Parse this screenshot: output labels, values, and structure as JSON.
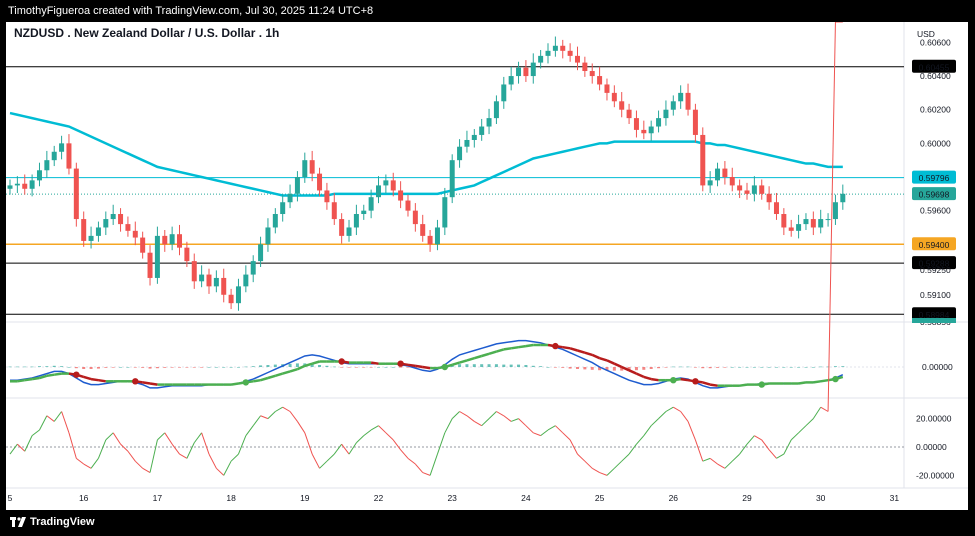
{
  "header": {
    "attribution": "TimothyFigueroa created with TradingView.com, Jul 30, 2025 11:24 UTC+8"
  },
  "footer": {
    "brand": "TradingView",
    "brand_icon": "tradingview-logo-icon"
  },
  "chart_data": {
    "type": "candlestick",
    "title": "NZDUSD . New Zealand Dollar / U.S. Dollar . 1h",
    "currency": "USD",
    "colors": {
      "up": "#26a69a",
      "down": "#ef5350",
      "ma": "#00bcd4",
      "orange_line": "#f5a623",
      "cyan_line": "#00bcd4",
      "black_line": "#000000",
      "green_label": "#26a69a",
      "macd_fast": "#1e5ccf",
      "macd_slow": "#4caf50",
      "macd_slow_down": "#b71c1c",
      "osc_up": "#4caf50",
      "osc_down": "#ef5350"
    },
    "x_axis": {
      "ticks": [
        "5",
        "16",
        "17",
        "18",
        "19",
        "22",
        "23",
        "24",
        "25",
        "26",
        "29",
        "30",
        "31"
      ],
      "tick_bar_index": [
        0,
        10,
        20,
        30,
        40,
        50,
        60,
        70,
        80,
        90,
        100,
        110,
        120
      ]
    },
    "price_axis": {
      "range": [
        0.5895,
        0.6065
      ],
      "ticks": [
        "0.60600",
        "0.60400",
        "0.60200",
        "0.60000",
        "0.59600",
        "0.59100"
      ],
      "tick_values": [
        0.606,
        0.604,
        0.602,
        0.6,
        0.596,
        0.591
      ],
      "partial_ticks": [
        "0.59250",
        "0.58856"
      ]
    },
    "horizontal_lines": [
      {
        "value": 0.60455,
        "label": "0.60455",
        "color": "black_line"
      },
      {
        "value": 0.59796,
        "label": "0.59796",
        "color": "cyan_line"
      },
      {
        "value": 0.59698,
        "label": "0.59698",
        "color": "green_label",
        "dotted": true
      },
      {
        "value": 0.594,
        "label": "0.59400",
        "color": "orange_line"
      },
      {
        "value": 0.59288,
        "label": "0.59288",
        "color": "black_line"
      },
      {
        "value": 0.58984,
        "label": "0.58984",
        "color": "black_line"
      }
    ],
    "close": [
      0.5975,
      0.5976,
      0.5973,
      0.5978,
      0.5984,
      0.599,
      0.5995,
      0.6,
      0.5985,
      0.5955,
      0.5942,
      0.5945,
      0.595,
      0.5955,
      0.5958,
      0.5952,
      0.5948,
      0.5944,
      0.5935,
      0.592,
      0.5945,
      0.594,
      0.5946,
      0.5938,
      0.593,
      0.5918,
      0.5922,
      0.5915,
      0.592,
      0.591,
      0.5905,
      0.5915,
      0.5922,
      0.593,
      0.594,
      0.595,
      0.5958,
      0.5965,
      0.597,
      0.598,
      0.599,
      0.5982,
      0.5972,
      0.5965,
      0.5955,
      0.5945,
      0.595,
      0.5958,
      0.596,
      0.5968,
      0.5975,
      0.5978,
      0.5972,
      0.5966,
      0.596,
      0.5952,
      0.5945,
      0.594,
      0.595,
      0.5968,
      0.599,
      0.5998,
      0.6002,
      0.6005,
      0.601,
      0.6015,
      0.6025,
      0.6035,
      0.604,
      0.6045,
      0.604,
      0.6048,
      0.6052,
      0.6055,
      0.6058,
      0.6055,
      0.6052,
      0.6048,
      0.6043,
      0.604,
      0.6035,
      0.603,
      0.6025,
      0.602,
      0.6015,
      0.6008,
      0.6006,
      0.601,
      0.6015,
      0.602,
      0.6025,
      0.603,
      0.602,
      0.6005,
      0.5975,
      0.5978,
      0.5985,
      0.598,
      0.5975,
      0.5972,
      0.597,
      0.5975,
      0.597,
      0.5965,
      0.5958,
      0.595,
      0.5948,
      0.5952,
      0.5955,
      0.595,
      0.5955,
      0.5955,
      0.5965,
      0.597
    ],
    "ma": [
      0.6018,
      0.6017,
      0.6016,
      0.6015,
      0.6014,
      0.6013,
      0.6012,
      0.6011,
      0.601,
      0.6008,
      0.6006,
      0.6004,
      0.6002,
      0.6,
      0.5998,
      0.5996,
      0.5994,
      0.5992,
      0.599,
      0.5988,
      0.5986,
      0.5985,
      0.5984,
      0.5983,
      0.5982,
      0.5981,
      0.598,
      0.5979,
      0.5978,
      0.5977,
      0.5976,
      0.5975,
      0.5974,
      0.5973,
      0.5972,
      0.5971,
      0.597,
      0.5969,
      0.5969,
      0.5969,
      0.5969,
      0.5969,
      0.5969,
      0.5969,
      0.597,
      0.597,
      0.597,
      0.597,
      0.597,
      0.597,
      0.597,
      0.597,
      0.597,
      0.597,
      0.597,
      0.597,
      0.597,
      0.597,
      0.597,
      0.5971,
      0.5972,
      0.5973,
      0.5974,
      0.5975,
      0.5977,
      0.5979,
      0.5981,
      0.5983,
      0.5985,
      0.5987,
      0.5989,
      0.5991,
      0.5992,
      0.5993,
      0.5994,
      0.5995,
      0.5996,
      0.5997,
      0.5998,
      0.5999,
      0.6,
      0.6,
      0.6001,
      0.6001,
      0.6001,
      0.6001,
      0.6001,
      0.6001,
      0.6001,
      0.6001,
      0.6001,
      0.6001,
      0.6001,
      0.6001,
      0.6,
      0.6,
      0.5999,
      0.5999,
      0.5998,
      0.5997,
      0.5996,
      0.5995,
      0.5994,
      0.5993,
      0.5992,
      0.5991,
      0.599,
      0.5989,
      0.5988,
      0.5988,
      0.5987,
      0.5986,
      0.5986,
      0.5986
    ],
    "macd_axis": {
      "ticks": [
        "0.00000"
      ],
      "tick_values": [
        0
      ]
    },
    "macd_fast": [
      -12,
      -12,
      -11,
      -10,
      -8,
      -6,
      -4,
      -4,
      -6,
      -10,
      -14,
      -16,
      -16,
      -15,
      -14,
      -13,
      -13,
      -14,
      -16,
      -19,
      -19,
      -18,
      -17,
      -17,
      -17,
      -17,
      -17,
      -16,
      -16,
      -16,
      -16,
      -15,
      -13,
      -11,
      -8,
      -5,
      -2,
      1,
      4,
      7,
      10,
      11,
      10,
      8,
      6,
      4,
      3,
      3,
      3,
      3,
      3,
      3,
      3,
      2,
      1,
      -1,
      -3,
      -4,
      -2,
      2,
      7,
      11,
      13,
      15,
      17,
      19,
      21,
      22,
      23,
      24,
      24,
      23,
      22,
      20,
      18,
      16,
      13,
      10,
      7,
      4,
      0,
      -3,
      -6,
      -9,
      -12,
      -14,
      -16,
      -16,
      -15,
      -13,
      -11,
      -10,
      -11,
      -14,
      -17,
      -19,
      -19,
      -18,
      -17,
      -17,
      -16,
      -16,
      -15,
      -15,
      -15,
      -15,
      -15,
      -15,
      -14,
      -14,
      -13,
      -12,
      -10,
      -7
    ],
    "macd_slow": [
      -13,
      -13,
      -12,
      -11,
      -10,
      -8,
      -7,
      -6,
      -6,
      -7,
      -9,
      -11,
      -12,
      -13,
      -13,
      -13,
      -13,
      -13,
      -14,
      -15,
      -16,
      -16,
      -16,
      -16,
      -16,
      -16,
      -16,
      -16,
      -16,
      -16,
      -16,
      -15,
      -14,
      -13,
      -12,
      -10,
      -8,
      -6,
      -4,
      -2,
      1,
      3,
      5,
      5,
      5,
      5,
      4,
      4,
      4,
      4,
      3,
      3,
      3,
      3,
      2,
      1,
      0,
      -1,
      -1,
      0,
      2,
      4,
      6,
      8,
      10,
      12,
      14,
      16,
      17,
      18,
      19,
      20,
      20,
      20,
      19,
      18,
      17,
      15,
      13,
      11,
      8,
      6,
      3,
      0,
      -3,
      -6,
      -9,
      -11,
      -12,
      -12,
      -12,
      -11,
      -12,
      -13,
      -14,
      -16,
      -17,
      -17,
      -17,
      -17,
      -16,
      -16,
      -16,
      -15,
      -15,
      -15,
      -15,
      -15,
      -14,
      -14,
      -13,
      -12,
      -11,
      -9
    ],
    "macd_hist": [
      1,
      1,
      1,
      1,
      2,
      2,
      3,
      2,
      0,
      -3,
      -5,
      -5,
      -4,
      -2,
      -1,
      0,
      0,
      -1,
      -2,
      -4,
      -3,
      -2,
      -1,
      -1,
      -1,
      -1,
      -1,
      0,
      0,
      0,
      0,
      0,
      1,
      2,
      4,
      5,
      6,
      7,
      8,
      9,
      9,
      8,
      5,
      3,
      1,
      -1,
      -1,
      -1,
      -1,
      -1,
      0,
      0,
      0,
      -1,
      -1,
      -2,
      -3,
      -3,
      -1,
      2,
      5,
      7,
      7,
      7,
      7,
      7,
      7,
      6,
      6,
      6,
      5,
      3,
      2,
      0,
      -1,
      -2,
      -4,
      -5,
      -6,
      -7,
      -8,
      -9,
      -9,
      -9,
      -9,
      -8,
      -7,
      -5,
      -3,
      -1,
      1,
      1,
      1,
      -1,
      -3,
      -3,
      -2,
      -1,
      0,
      0,
      0,
      0,
      0,
      0,
      0,
      0,
      0,
      0,
      0,
      0,
      1,
      1,
      2,
      2
    ],
    "osc_axis": {
      "ticks": [
        "20.00000",
        "0.00000",
        "-20.00000"
      ],
      "tick_values": [
        20,
        0,
        -20
      ]
    },
    "osc": [
      -5,
      2,
      -3,
      8,
      12,
      22,
      18,
      25,
      10,
      -8,
      -12,
      -15,
      -8,
      5,
      10,
      2,
      -3,
      -10,
      -15,
      -18,
      5,
      10,
      2,
      -5,
      -8,
      3,
      10,
      -5,
      -15,
      -20,
      -10,
      -5,
      8,
      15,
      22,
      20,
      25,
      28,
      25,
      18,
      10,
      -5,
      -15,
      -10,
      -5,
      2,
      -5,
      3,
      8,
      12,
      15,
      10,
      5,
      -2,
      -8,
      -12,
      -18,
      -20,
      -5,
      10,
      20,
      25,
      22,
      18,
      15,
      20,
      25,
      22,
      18,
      20,
      15,
      10,
      8,
      12,
      15,
      10,
      5,
      -5,
      -10,
      -15,
      -18,
      -20,
      -15,
      -10,
      -5,
      2,
      8,
      15,
      20,
      25,
      28,
      25,
      18,
      5,
      -10,
      -8,
      -12,
      -15,
      -10,
      -5,
      2,
      8,
      5,
      -2,
      -8,
      -5,
      5,
      10,
      15,
      20,
      28,
      25
    ]
  }
}
